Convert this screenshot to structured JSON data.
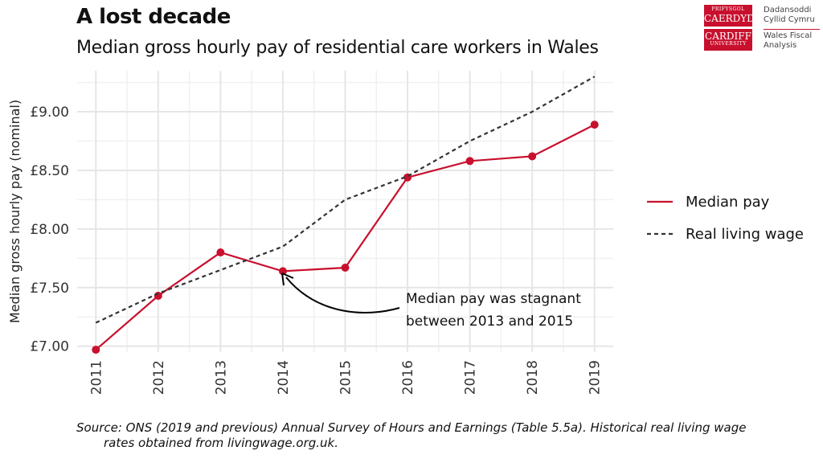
{
  "title": "A lost decade",
  "subtitle": "Median gross hourly pay of residential care workers in Wales",
  "logo": {
    "box_top_line1": "PRIFYSGOL",
    "box_top_line2": "CAERDYDD",
    "box_bottom_line1": "CARDIFF",
    "box_bottom_line2": "UNIVERSITY",
    "text_welsh_1": "Dadansoddi",
    "text_welsh_2": "Cyllid Cymru",
    "text_english_1": "Wales Fiscal",
    "text_english_2": "Analysis"
  },
  "source": {
    "line1": "Source: ONS (2019 and previous) Annual Survey of Hours and Earnings (Table 5.5a). Historical real living wage",
    "line2": "rates obtained from livingwage.org.uk."
  },
  "annotation": {
    "line1": "Median pay was stagnant",
    "line2": "between 2013 and 2015"
  },
  "colors": {
    "median": "#c8102e",
    "living_wage": "#333333",
    "grid": "#e6e6e6"
  },
  "chart_data": {
    "type": "line",
    "x": [
      2011,
      2012,
      2013,
      2014,
      2015,
      2016,
      2017,
      2018,
      2019
    ],
    "series": [
      {
        "name": "Median pay",
        "style": "solid-with-points",
        "values": [
          6.97,
          7.43,
          7.8,
          7.64,
          7.67,
          8.44,
          8.58,
          8.62,
          8.89
        ]
      },
      {
        "name": "Real living wage",
        "style": "dashed",
        "values": [
          7.2,
          7.45,
          7.65,
          7.85,
          8.25,
          8.45,
          8.75,
          9.0,
          9.3
        ]
      }
    ],
    "ylabel": "Median gross hourly pay (nominal)",
    "xlabel": "",
    "ylim": [
      6.95,
      9.35
    ],
    "yticks": [
      7.0,
      7.5,
      8.0,
      8.5,
      9.0
    ],
    "ytick_labels": [
      "£7.00",
      "£7.50",
      "£8.00",
      "£8.50",
      "£9.00"
    ],
    "xtick_labels": [
      "2011",
      "2012",
      "2013",
      "2014",
      "2015",
      "2016",
      "2017",
      "2018",
      "2019"
    ],
    "grid": true,
    "legend_position": "right"
  }
}
